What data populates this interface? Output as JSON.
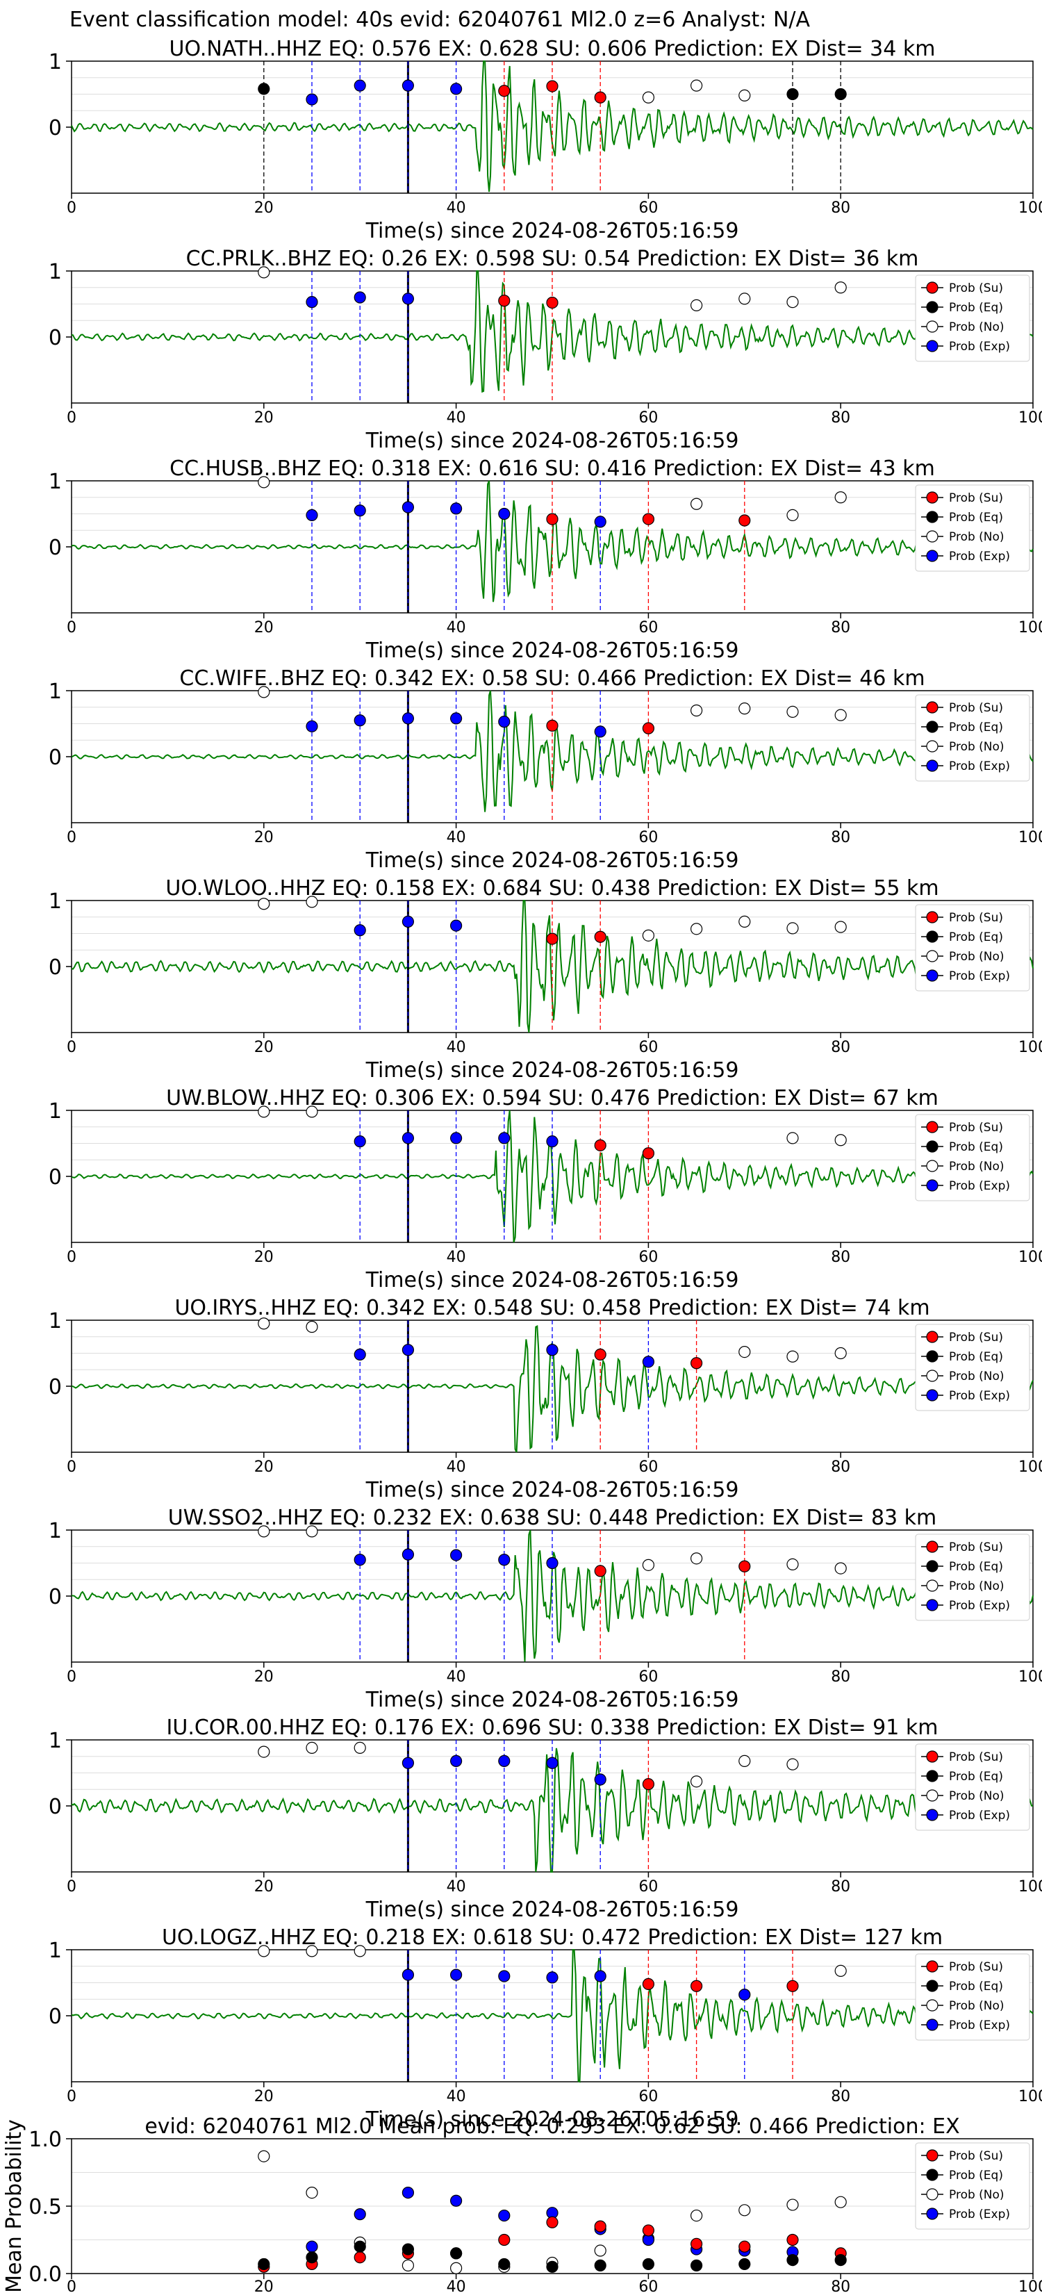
{
  "figure_title": "Event classification model: 40s evid: 62040761 Ml2.0 z=6 Analyst: N/A",
  "legend_labels": [
    "Prob (Su)",
    "Prob (Eq)",
    "Prob (No)",
    "Prob (Exp)"
  ],
  "colors": {
    "su": "#ff0000",
    "eq": "#000000",
    "no": "#ffffff",
    "exp": "#0000ff",
    "trace": "#008000",
    "grid": "#dddddd"
  },
  "chart_data": [
    {
      "type": "line",
      "subtitle": "UO.NATH..HHZ   EQ: 0.576  EX: 0.628  SU: 0.606   Prediction: EX    Dist= 34 km",
      "xlabel": "Time(s) since 2024-08-26T05:16:59",
      "xlim": [
        0,
        100
      ],
      "ylim": [
        -1,
        1
      ],
      "xticks": [
        0,
        20,
        40,
        60,
        80,
        100
      ],
      "yticks": [
        0,
        1
      ],
      "grid": true,
      "legend": "none",
      "origin_line": 35,
      "trace": {
        "amp": 0.06,
        "onset": 42,
        "peak": 1.0,
        "noise_freq": 0.8,
        "seed": 1
      },
      "series": [
        {
          "name": "Prob (Eq)",
          "x": [
            20,
            75,
            80
          ],
          "y": [
            0.58,
            0.5,
            0.5
          ]
        },
        {
          "name": "Prob (Exp)",
          "x": [
            25,
            30,
            35,
            40
          ],
          "y": [
            0.42,
            0.63,
            0.63,
            0.58
          ]
        },
        {
          "name": "Prob (Su)",
          "x": [
            45,
            50,
            55
          ],
          "y": [
            0.55,
            0.62,
            0.45
          ]
        },
        {
          "name": "Prob (No)",
          "x": [
            60,
            65,
            70
          ],
          "y": [
            0.45,
            0.63,
            0.48
          ]
        }
      ]
    },
    {
      "type": "line",
      "subtitle": "CC.PRLK..BHZ   EQ: 0.26  EX: 0.598  SU: 0.54   Prediction: EX    Dist= 36 km",
      "xlabel": "Time(s) since 2024-08-26T05:16:59",
      "xlim": [
        0,
        100
      ],
      "ylim": [
        -1,
        1
      ],
      "xticks": [
        0,
        20,
        40,
        60,
        80,
        100
      ],
      "yticks": [
        0,
        1
      ],
      "grid": true,
      "legend": "top-right",
      "origin_line": 35,
      "trace": {
        "amp": 0.05,
        "onset": 41,
        "peak": 1.0,
        "noise_freq": 0.6,
        "seed": 2
      },
      "series": [
        {
          "name": "Prob (Exp)",
          "x": [
            25,
            30,
            35
          ],
          "y": [
            0.53,
            0.6,
            0.58
          ]
        },
        {
          "name": "Prob (Su)",
          "x": [
            45,
            50
          ],
          "y": [
            0.55,
            0.52
          ]
        },
        {
          "name": "Prob (No)",
          "x": [
            20,
            65,
            70,
            75,
            80
          ],
          "y": [
            0.98,
            0.48,
            0.58,
            0.53,
            0.75
          ]
        }
      ]
    },
    {
      "type": "line",
      "subtitle": "CC.HUSB..BHZ   EQ: 0.318  EX: 0.616  SU: 0.416   Prediction: EX    Dist= 43 km",
      "xlabel": "Time(s) since 2024-08-26T05:16:59",
      "xlim": [
        0,
        100
      ],
      "ylim": [
        -1,
        1
      ],
      "xticks": [
        0,
        20,
        40,
        60,
        80,
        100
      ],
      "yticks": [
        0,
        1
      ],
      "grid": true,
      "legend": "top-right",
      "origin_line": 35,
      "trace": {
        "amp": 0.03,
        "onset": 42,
        "peak": 1.0,
        "noise_freq": 0.5,
        "seed": 3
      },
      "series": [
        {
          "name": "Prob (Exp)",
          "x": [
            25,
            30,
            35,
            40,
            45,
            55
          ],
          "y": [
            0.48,
            0.55,
            0.6,
            0.58,
            0.5,
            0.38
          ]
        },
        {
          "name": "Prob (Su)",
          "x": [
            50,
            60,
            70
          ],
          "y": [
            0.42,
            0.42,
            0.4
          ]
        },
        {
          "name": "Prob (No)",
          "x": [
            20,
            65,
            75,
            80
          ],
          "y": [
            0.98,
            0.65,
            0.48,
            0.75
          ]
        }
      ]
    },
    {
      "type": "line",
      "subtitle": "CC.WIFE..BHZ   EQ: 0.342  EX: 0.58  SU: 0.466   Prediction: EX    Dist= 46 km",
      "xlabel": "Time(s) since 2024-08-26T05:16:59",
      "xlim": [
        0,
        100
      ],
      "ylim": [
        -1,
        1
      ],
      "xticks": [
        0,
        20,
        40,
        60,
        80,
        100
      ],
      "yticks": [
        0,
        1
      ],
      "grid": true,
      "legend": "top-right",
      "origin_line": 35,
      "trace": {
        "amp": 0.03,
        "onset": 42,
        "peak": 1.0,
        "noise_freq": 0.5,
        "seed": 4
      },
      "series": [
        {
          "name": "Prob (Exp)",
          "x": [
            25,
            30,
            35,
            40,
            45,
            55
          ],
          "y": [
            0.46,
            0.55,
            0.58,
            0.58,
            0.53,
            0.38
          ]
        },
        {
          "name": "Prob (Su)",
          "x": [
            50,
            60
          ],
          "y": [
            0.47,
            0.43
          ]
        },
        {
          "name": "Prob (No)",
          "x": [
            20,
            65,
            70,
            75,
            80
          ],
          "y": [
            0.98,
            0.7,
            0.73,
            0.68,
            0.63
          ]
        }
      ]
    },
    {
      "type": "line",
      "subtitle": "UO.WLOO..HHZ   EQ: 0.158  EX: 0.684  SU: 0.438   Prediction: EX    Dist= 55 km",
      "xlabel": "Time(s) since 2024-08-26T05:16:59",
      "xlim": [
        0,
        100
      ],
      "ylim": [
        -1,
        1
      ],
      "xticks": [
        0,
        20,
        40,
        60,
        80,
        100
      ],
      "yticks": [
        0,
        1
      ],
      "grid": true,
      "legend": "top-right",
      "origin_line": 35,
      "trace": {
        "amp": 0.08,
        "onset": 46,
        "peak": 1.0,
        "noise_freq": 1.0,
        "seed": 5
      },
      "series": [
        {
          "name": "Prob (Exp)",
          "x": [
            30,
            35,
            40
          ],
          "y": [
            0.55,
            0.68,
            0.62
          ]
        },
        {
          "name": "Prob (Su)",
          "x": [
            50,
            55
          ],
          "y": [
            0.42,
            0.45
          ]
        },
        {
          "name": "Prob (No)",
          "x": [
            20,
            25,
            60,
            65,
            70,
            75,
            80
          ],
          "y": [
            0.95,
            0.98,
            0.47,
            0.57,
            0.68,
            0.58,
            0.6
          ]
        }
      ]
    },
    {
      "type": "line",
      "subtitle": "UW.BLOW..HHZ   EQ: 0.306  EX: 0.594  SU: 0.476   Prediction: EX    Dist= 67 km",
      "xlabel": "Time(s) since 2024-08-26T05:16:59",
      "xlim": [
        0,
        100
      ],
      "ylim": [
        -1,
        1
      ],
      "xticks": [
        0,
        20,
        40,
        60,
        80,
        100
      ],
      "yticks": [
        0,
        1
      ],
      "grid": true,
      "legend": "top-right",
      "origin_line": 35,
      "trace": {
        "amp": 0.03,
        "onset": 44,
        "peak": 1.0,
        "noise_freq": 0.5,
        "seed": 6
      },
      "series": [
        {
          "name": "Prob (Exp)",
          "x": [
            30,
            35,
            40,
            45,
            50
          ],
          "y": [
            0.53,
            0.58,
            0.58,
            0.58,
            0.53
          ]
        },
        {
          "name": "Prob (Su)",
          "x": [
            55,
            60
          ],
          "y": [
            0.47,
            0.35
          ]
        },
        {
          "name": "Prob (No)",
          "x": [
            20,
            25,
            75,
            80
          ],
          "y": [
            0.98,
            0.98,
            0.58,
            0.55
          ]
        }
      ]
    },
    {
      "type": "line",
      "subtitle": "UO.IRYS..HHZ   EQ: 0.342  EX: 0.548  SU: 0.458   Prediction: EX    Dist= 74 km",
      "xlabel": "Time(s) since 2024-08-26T05:16:59",
      "xlim": [
        0,
        100
      ],
      "ylim": [
        -1,
        1
      ],
      "xticks": [
        0,
        20,
        40,
        60,
        80,
        100
      ],
      "yticks": [
        0,
        1
      ],
      "grid": true,
      "legend": "top-right",
      "origin_line": 35,
      "trace": {
        "amp": 0.03,
        "onset": 46,
        "peak": 1.0,
        "noise_freq": 0.5,
        "seed": 7
      },
      "series": [
        {
          "name": "Prob (Exp)",
          "x": [
            30,
            35,
            50,
            60
          ],
          "y": [
            0.48,
            0.55,
            0.55,
            0.37
          ]
        },
        {
          "name": "Prob (Su)",
          "x": [
            55,
            65
          ],
          "y": [
            0.48,
            0.35
          ]
        },
        {
          "name": "Prob (No)",
          "x": [
            20,
            25,
            70,
            75,
            80
          ],
          "y": [
            0.95,
            0.9,
            0.52,
            0.45,
            0.5
          ]
        }
      ]
    },
    {
      "type": "line",
      "subtitle": "UW.SSO2..HHZ   EQ: 0.232  EX: 0.638  SU: 0.448   Prediction: EX    Dist= 83 km",
      "xlabel": "Time(s) since 2024-08-26T05:16:59",
      "xlim": [
        0,
        100
      ],
      "ylim": [
        -1,
        1
      ],
      "xticks": [
        0,
        20,
        40,
        60,
        80,
        100
      ],
      "yticks": [
        0,
        1
      ],
      "grid": true,
      "legend": "top-right",
      "origin_line": 35,
      "trace": {
        "amp": 0.06,
        "onset": 46,
        "peak": 1.0,
        "noise_freq": 1.0,
        "seed": 8
      },
      "series": [
        {
          "name": "Prob (Exp)",
          "x": [
            30,
            35,
            40,
            45,
            50
          ],
          "y": [
            0.55,
            0.63,
            0.62,
            0.55,
            0.5
          ]
        },
        {
          "name": "Prob (Su)",
          "x": [
            55,
            70
          ],
          "y": [
            0.38,
            0.45
          ]
        },
        {
          "name": "Prob (No)",
          "x": [
            20,
            25,
            60,
            65,
            75,
            80
          ],
          "y": [
            0.98,
            0.98,
            0.47,
            0.57,
            0.48,
            0.42
          ]
        }
      ]
    },
    {
      "type": "line",
      "subtitle": "IU.COR.00.HHZ   EQ: 0.176  EX: 0.696  SU: 0.338   Prediction: EX    Dist= 91 km",
      "xlabel": "Time(s) since 2024-08-26T05:16:59",
      "xlim": [
        0,
        100
      ],
      "ylim": [
        -1,
        1
      ],
      "xticks": [
        0,
        20,
        40,
        60,
        80,
        100
      ],
      "yticks": [
        0,
        1
      ],
      "grid": true,
      "legend": "top-right",
      "origin_line": 35,
      "trace": {
        "amp": 0.1,
        "onset": 48,
        "peak": 1.0,
        "noise_freq": 0.6,
        "seed": 9
      },
      "series": [
        {
          "name": "Prob (Exp)",
          "x": [
            35,
            40,
            45,
            50,
            55
          ],
          "y": [
            0.65,
            0.68,
            0.68,
            0.65,
            0.4
          ]
        },
        {
          "name": "Prob (Su)",
          "x": [
            60
          ],
          "y": [
            0.33
          ]
        },
        {
          "name": "Prob (No)",
          "x": [
            20,
            25,
            30,
            65,
            70,
            75
          ],
          "y": [
            0.82,
            0.88,
            0.88,
            0.37,
            0.68,
            0.63
          ]
        }
      ]
    },
    {
      "type": "line",
      "subtitle": "UO.LOGZ..HHZ   EQ: 0.218  EX: 0.618  SU: 0.472   Prediction: EX    Dist= 127 km",
      "xlabel": "Time(s) since 2024-08-26T05:16:59",
      "xlim": [
        0,
        100
      ],
      "ylim": [
        -1,
        1
      ],
      "xticks": [
        0,
        20,
        40,
        60,
        80,
        100
      ],
      "yticks": [
        0,
        1
      ],
      "grid": true,
      "legend": "top-right",
      "origin_line": 35,
      "trace": {
        "amp": 0.04,
        "onset": 52,
        "peak": 1.0,
        "noise_freq": 0.6,
        "seed": 10
      },
      "series": [
        {
          "name": "Prob (Exp)",
          "x": [
            35,
            40,
            45,
            50,
            55,
            70
          ],
          "y": [
            0.62,
            0.62,
            0.6,
            0.58,
            0.6,
            0.32
          ]
        },
        {
          "name": "Prob (Su)",
          "x": [
            60,
            65,
            75
          ],
          "y": [
            0.48,
            0.45,
            0.45
          ]
        },
        {
          "name": "Prob (No)",
          "x": [
            20,
            25,
            30,
            80
          ],
          "y": [
            0.98,
            0.98,
            0.98,
            0.68
          ]
        }
      ]
    },
    {
      "type": "scatter",
      "subtitle": "evid: 62040761  Ml2.0   Mean prob:   EQ: 0.293  EX: 0.62  SU: 0.466   Prediction: EX",
      "xlabel": "",
      "ylabel": "Mean Probability",
      "xlim": [
        0,
        100
      ],
      "ylim": [
        0,
        1
      ],
      "xticks": [
        0,
        20,
        40,
        60,
        80,
        100
      ],
      "yticks": [
        0.0,
        0.5,
        1.0
      ],
      "grid": true,
      "legend": "top-right",
      "series": [
        {
          "name": "Prob (No)",
          "x": [
            20,
            25,
            30,
            35,
            40,
            45,
            50,
            55,
            60,
            65,
            70,
            75,
            80
          ],
          "y": [
            0.87,
            0.6,
            0.23,
            0.06,
            0.04,
            0.05,
            0.08,
            0.17,
            0.26,
            0.43,
            0.47,
            0.51,
            0.53
          ]
        },
        {
          "name": "Prob (Exp)",
          "x": [
            25,
            30,
            35,
            40,
            45,
            50,
            55,
            60,
            65,
            70,
            75
          ],
          "y": [
            0.2,
            0.44,
            0.6,
            0.54,
            0.43,
            0.45,
            0.33,
            0.25,
            0.18,
            0.17,
            0.16
          ]
        },
        {
          "name": "Prob (Su)",
          "x": [
            20,
            25,
            30,
            35,
            40,
            45,
            50,
            55,
            60,
            65,
            70,
            75,
            80
          ],
          "y": [
            0.05,
            0.07,
            0.12,
            0.15,
            0.15,
            0.25,
            0.38,
            0.35,
            0.32,
            0.22,
            0.2,
            0.25,
            0.15
          ]
        },
        {
          "name": "Prob (Eq)",
          "x": [
            20,
            25,
            30,
            35,
            40,
            45,
            50,
            55,
            60,
            65,
            70,
            75,
            80
          ],
          "y": [
            0.07,
            0.12,
            0.2,
            0.18,
            0.15,
            0.07,
            0.05,
            0.06,
            0.07,
            0.06,
            0.07,
            0.1,
            0.1
          ]
        }
      ]
    }
  ]
}
